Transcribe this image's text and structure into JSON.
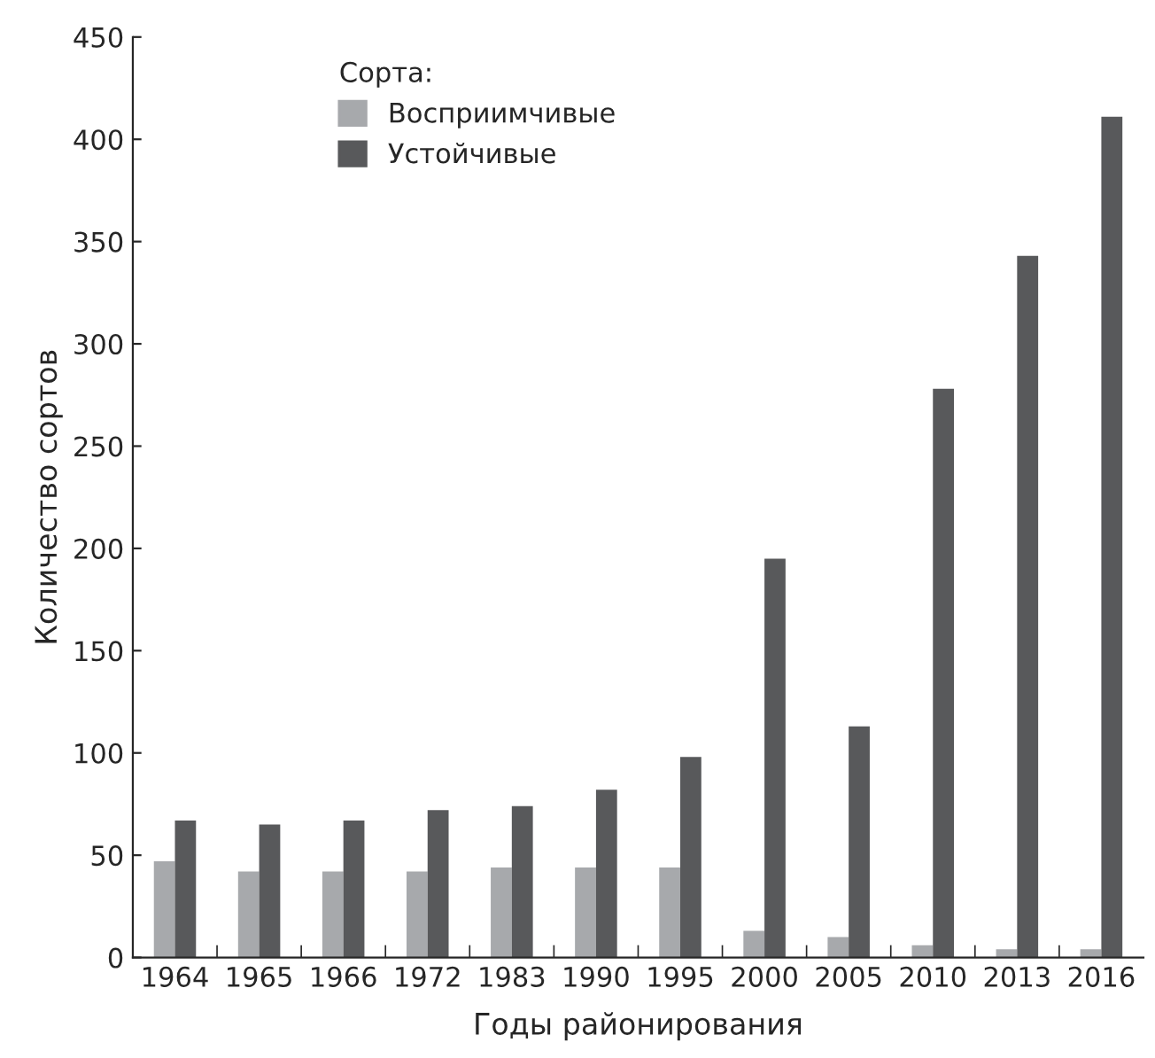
{
  "chart_data": {
    "type": "bar",
    "xlabel": "Годы районирования",
    "ylabel": "Количество сортов",
    "legend_title": "Сорта:",
    "legend": "top left",
    "categories": [
      "1964",
      "1965",
      "1966",
      "1972",
      "1983",
      "1990",
      "1995",
      "2000",
      "2005",
      "2010",
      "2013",
      "2016"
    ],
    "series": [
      {
        "name": "Восприимчивые",
        "color": "#a7a9ac",
        "values": [
          47,
          42,
          42,
          42,
          44,
          44,
          44,
          13,
          10,
          6,
          4,
          4
        ]
      },
      {
        "name": "Устойчивые",
        "color": "#58595b",
        "values": [
          67,
          65,
          67,
          72,
          74,
          82,
          98,
          195,
          113,
          278,
          343,
          411
        ]
      }
    ],
    "ylim": [
      0,
      450
    ],
    "yticks": [
      0,
      50,
      100,
      150,
      200,
      250,
      300,
      350,
      400,
      450
    ],
    "grid": false
  }
}
